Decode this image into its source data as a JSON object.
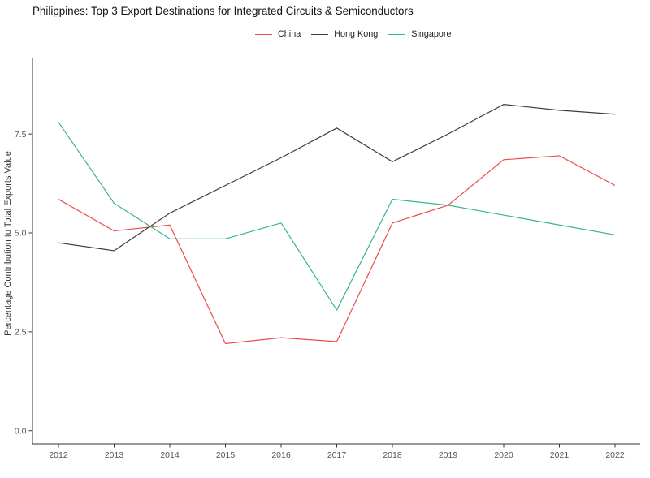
{
  "chart_data": {
    "type": "line",
    "title": "Philippines: Top 3 Export Destinations for Integrated Circuits & Semiconductors",
    "ylabel": "Percentage Contribution to Total Exports Value",
    "xlabel": "",
    "x": [
      2012,
      2013,
      2014,
      2015,
      2016,
      2017,
      2018,
      2019,
      2020,
      2021,
      2022
    ],
    "series": [
      {
        "name": "China",
        "color": "#ec4b49",
        "values": [
          5.85,
          5.05,
          5.2,
          2.2,
          2.35,
          2.25,
          5.25,
          5.7,
          6.85,
          6.95,
          6.2
        ]
      },
      {
        "name": "Hong Kong",
        "color": "#3d3d3d",
        "values": [
          4.75,
          4.55,
          5.5,
          6.2,
          6.9,
          7.65,
          6.8,
          7.5,
          8.25,
          8.1,
          8.0
        ]
      },
      {
        "name": "Singapore",
        "color": "#35b593",
        "values": [
          7.8,
          5.75,
          4.85,
          4.85,
          5.25,
          3.05,
          5.85,
          5.7,
          5.45,
          5.2,
          4.95
        ]
      }
    ],
    "yticks": {
      "values": [
        0,
        2.5,
        5,
        7.5
      ],
      "labels": [
        "0.0",
        "2.5",
        "5.0",
        "7.5"
      ]
    },
    "xtick_labels": [
      "2012",
      "2013",
      "2014",
      "2015",
      "2016",
      "2017",
      "2018",
      "2019",
      "2020",
      "2021",
      "2022"
    ],
    "ylim": [
      -0.33,
      9.43
    ],
    "grid": false,
    "legend_position": "top"
  },
  "colors": {
    "axis": "#333333",
    "tick_text": "#555555",
    "axis_title_text": "#333333",
    "title_text": "#111111",
    "background": "#ffffff"
  }
}
